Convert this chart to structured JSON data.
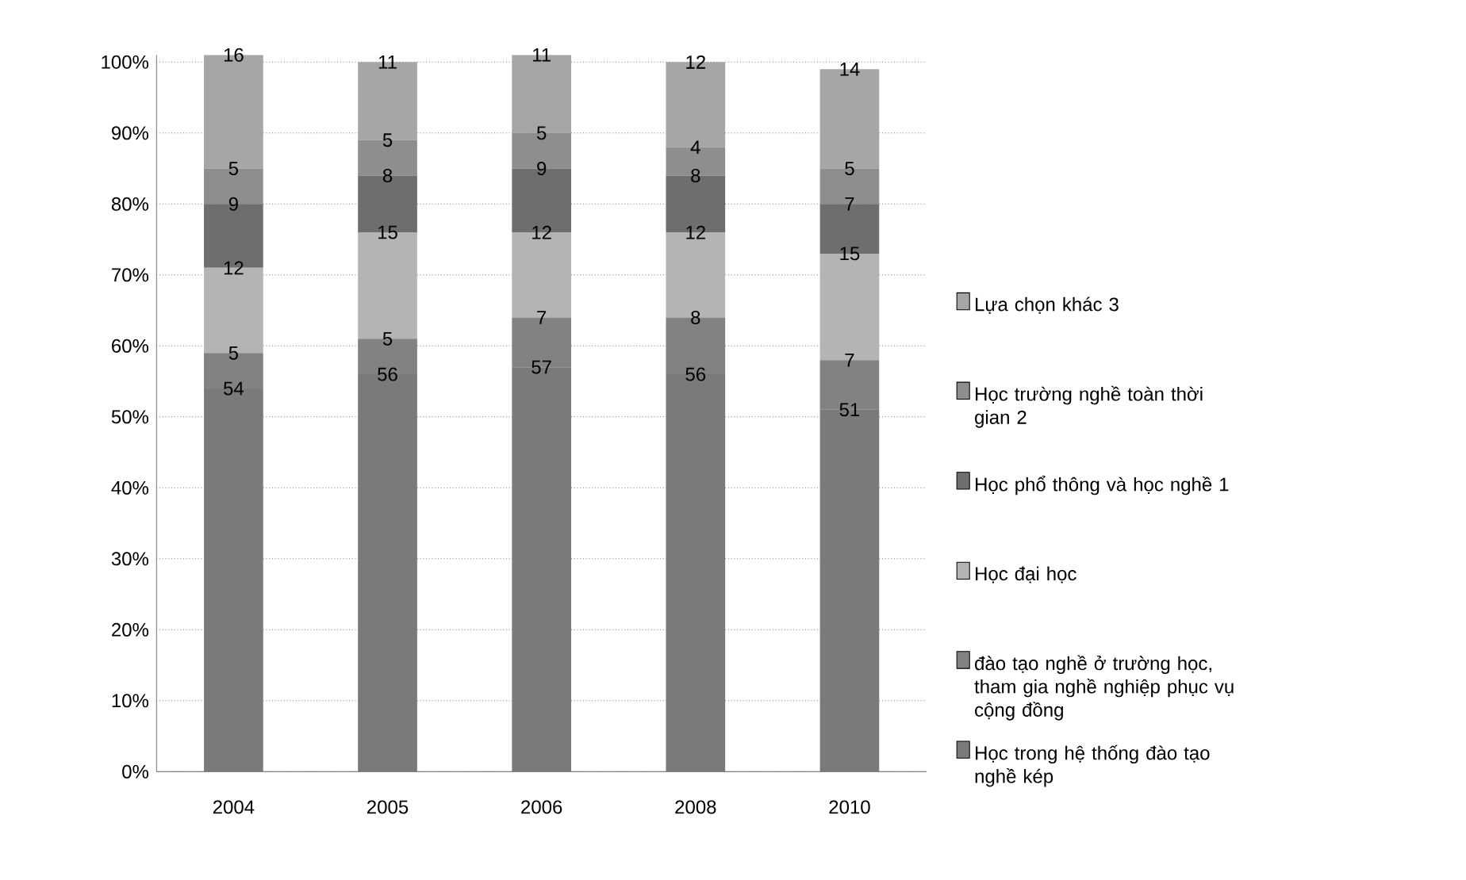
{
  "chart_data": {
    "type": "bar",
    "stacked": true,
    "data_labels": true,
    "grid": "y",
    "legend": "right",
    "categories": [
      "2004",
      "2005",
      "2006",
      "2008",
      "2010"
    ],
    "ylim": [
      0,
      101
    ],
    "yticks": [
      {
        "value": 0,
        "label": "0%"
      },
      {
        "value": 10,
        "label": "10%"
      },
      {
        "value": 20,
        "label": "20%"
      },
      {
        "value": 30,
        "label": "30%"
      },
      {
        "value": 40,
        "label": "40%"
      },
      {
        "value": 50,
        "label": "50%"
      },
      {
        "value": 60,
        "label": "60%"
      },
      {
        "value": 70,
        "label": "70%"
      },
      {
        "value": 80,
        "label": "80%"
      },
      {
        "value": 90,
        "label": "90%"
      },
      {
        "value": 100,
        "label": "100%"
      }
    ],
    "series": [
      {
        "name": "Học trong hệ thống đào tạo nghề kép",
        "color": "#7a7a7a",
        "values": [
          54,
          56,
          57,
          56,
          51
        ]
      },
      {
        "name": "đào tạo nghề ở trường học, tham gia nghề nghiệp phục vụ cộng đồng",
        "color": "#828282",
        "values": [
          5,
          5,
          7,
          8,
          7
        ]
      },
      {
        "name": "Học đại học",
        "color": "#b4b4b4",
        "values": [
          12,
          15,
          12,
          12,
          15
        ]
      },
      {
        "name": "Học phổ thông và học nghề 1",
        "color": "#6e6e6e",
        "values": [
          9,
          8,
          9,
          8,
          7
        ]
      },
      {
        "name": "Học trường nghề toàn thời gian 2",
        "color": "#8e8e8e",
        "values": [
          5,
          5,
          5,
          4,
          5
        ]
      },
      {
        "name": "Lựa chọn khác 3",
        "color": "#a6a6a6",
        "values": [
          16,
          11,
          11,
          12,
          14
        ]
      }
    ]
  }
}
